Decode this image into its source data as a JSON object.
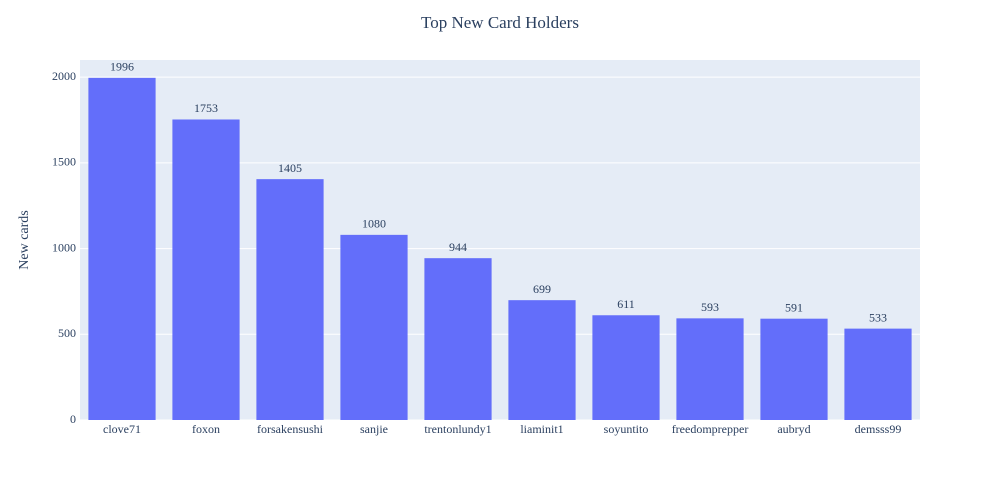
{
  "chart_data": {
    "type": "bar",
    "title": "Top New Card Holders",
    "y_label": "New cards",
    "categories": [
      "clove71",
      "foxon",
      "forsakensushi",
      "sanjie",
      "trentonlundy1",
      "liaminit1",
      "soyuntito",
      "freedomprepper",
      "aubryd",
      "demsss99"
    ],
    "values": [
      1996,
      1753,
      1405,
      1080,
      944,
      699,
      611,
      593,
      591,
      533
    ],
    "color": "#636efa",
    "ylim": [
      0,
      2100
    ],
    "yticks": [
      0,
      500,
      1000,
      1500,
      2000
    ],
    "grid": true
  }
}
